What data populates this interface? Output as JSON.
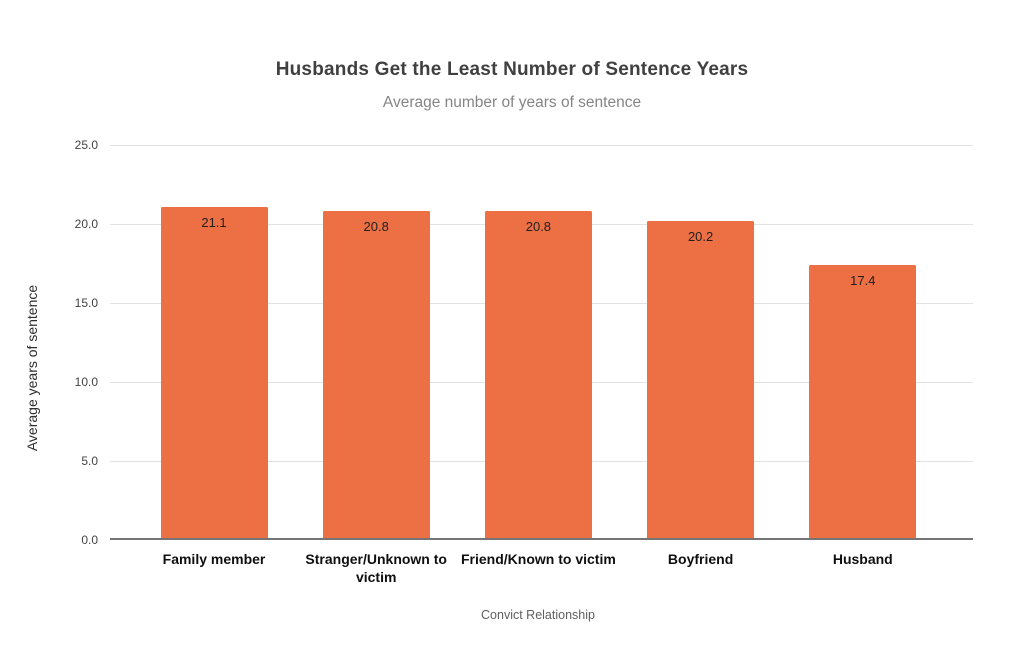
{
  "chart_data": {
    "type": "bar",
    "title": "Husbands Get the Least Number of Sentence Years",
    "subtitle": "Average number of years of sentence",
    "categories": [
      "Family member",
      "Stranger/Unknown to victim",
      "Friend/Known to victim",
      "Boyfriend",
      "Husband"
    ],
    "values": [
      21.1,
      20.8,
      20.8,
      20.2,
      17.4
    ],
    "value_labels": [
      "21.1",
      "20.8",
      "20.8",
      "20.2",
      "17.4"
    ],
    "xlabel": "Convict Relationship",
    "ylabel": "Average years of sentence",
    "ylim": [
      0,
      25
    ],
    "yticks": [
      {
        "value": 0,
        "label": "0.0"
      },
      {
        "value": 5,
        "label": "5.0"
      },
      {
        "value": 10,
        "label": "10.0"
      },
      {
        "value": 15,
        "label": "15.0"
      },
      {
        "value": 20,
        "label": "20.0"
      },
      {
        "value": 25,
        "label": "25.0"
      }
    ],
    "grid": true,
    "legend": "none",
    "bar_color": "#ED7045"
  }
}
